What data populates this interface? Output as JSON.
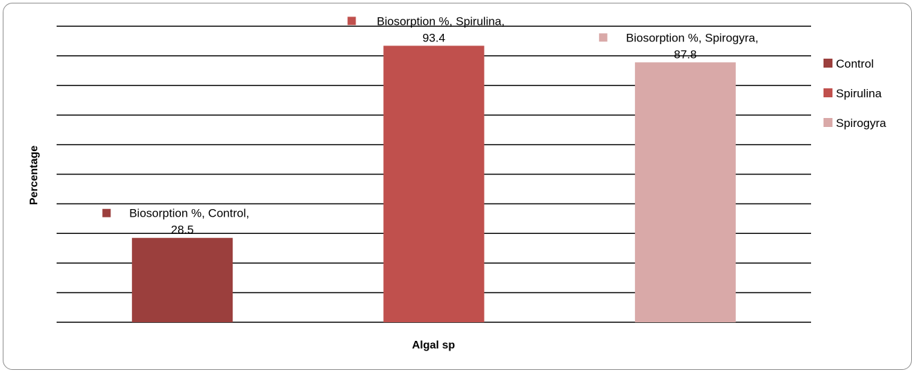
{
  "chart_data": {
    "type": "bar",
    "xlabel": "Algal sp",
    "ylabel": "Percentage",
    "ylim": [
      0,
      100
    ],
    "gridlines": true,
    "y_tick_step": 10,
    "legend_position": "right",
    "categories": [
      "Control",
      "Spirulina",
      "Spirogyra"
    ],
    "values": [
      28.5,
      93.4,
      87.8
    ],
    "colors": [
      "#9b3f3d",
      "#c0504d",
      "#d9a9a8"
    ],
    "data_labels": [
      [
        "Biosorption %, Control,",
        "28.5"
      ],
      [
        "Biosorption %, Spirulina,",
        "93.4"
      ],
      [
        "Biosorption %, Spirogyra,",
        "87.8"
      ]
    ],
    "legend": [
      "Control",
      "Spirulina",
      "Spirogyra"
    ]
  }
}
